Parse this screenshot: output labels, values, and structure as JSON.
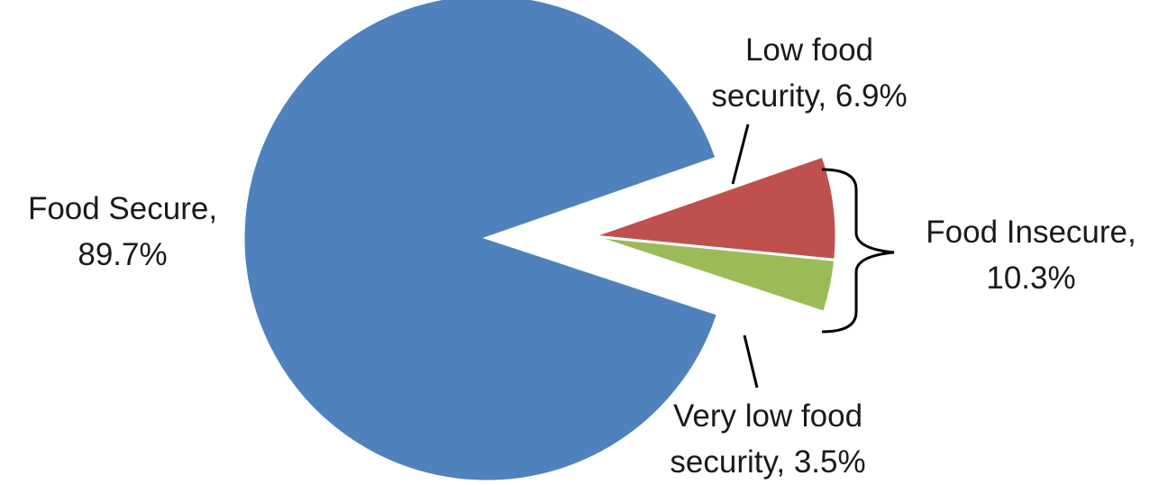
{
  "chart_data": {
    "type": "pie",
    "title": "",
    "slices": [
      {
        "key": "food-secure",
        "name": "Food Secure",
        "value": 89.7,
        "color": "#4F81BD",
        "label_line1": "Food Secure,",
        "label_line2": "89.7%"
      },
      {
        "key": "low-food-security",
        "name": "Low food security",
        "value": 6.9,
        "color": "#C0504D",
        "label_line1": "Low food",
        "label_line2": "security, 6.9%"
      },
      {
        "key": "very-low-food-security",
        "name": "Very low food security",
        "value": 3.5,
        "color": "#9BBB59",
        "label_line1": "Very low food",
        "label_line2": "security, 3.5%"
      }
    ],
    "group": {
      "name": "Food Insecure",
      "value": 10.3,
      "label_line1": "Food Insecure,",
      "label_line2": "10.3%"
    },
    "legend": "none"
  }
}
